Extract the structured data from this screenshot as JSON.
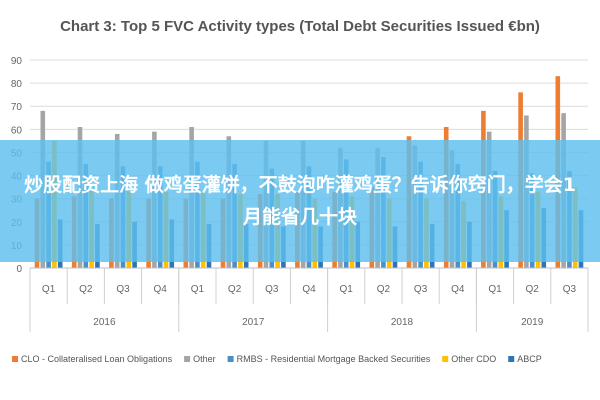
{
  "chart_data": {
    "type": "bar",
    "title": "Chart 3: Top 5 FVC Activity types (Total Debt Securities Issued €bn)",
    "xlabel": "",
    "ylabel": "",
    "ylim": [
      0,
      90
    ],
    "yticks": [
      "0",
      "10",
      "20",
      "30",
      "40",
      "50",
      "60",
      "70",
      "80",
      "90"
    ],
    "grid": true,
    "legend_position": "bottom",
    "categories": [
      "Q1",
      "Q2",
      "Q3",
      "Q4",
      "Q1",
      "Q2",
      "Q3",
      "Q4",
      "Q1",
      "Q2",
      "Q3",
      "Q4",
      "Q1",
      "Q2",
      "Q3"
    ],
    "groups": [
      {
        "label": "2016",
        "span": 4
      },
      {
        "label": "2017",
        "span": 4
      },
      {
        "label": "2018",
        "span": 4
      },
      {
        "label": "2019",
        "span": 3
      }
    ],
    "series": [
      {
        "name": "CLO - Collateralised Loan Obligations",
        "color": "#ED7D31",
        "values": [
          30,
          31,
          30,
          30,
          30,
          30,
          32,
          33,
          33,
          35,
          57,
          61,
          68,
          76,
          83
        ]
      },
      {
        "name": "Other",
        "color": "#A5A5A5",
        "values": [
          68,
          61,
          58,
          59,
          61,
          57,
          55,
          55,
          52,
          52,
          53,
          51,
          59,
          66,
          67
        ]
      },
      {
        "name": "RMBS - Residential Mortgage Backed Securities",
        "color": "#4A90C8",
        "values": [
          46,
          45,
          44,
          44,
          46,
          45,
          43,
          44,
          47,
          48,
          46,
          45,
          42,
          41,
          42
        ]
      },
      {
        "name": "Other CDO",
        "color": "#FFC000",
        "values": [
          55,
          35,
          34,
          33,
          33,
          32,
          32,
          30,
          31,
          30,
          30,
          29,
          31,
          33,
          35
        ]
      },
      {
        "name": "ABCP",
        "color": "#2E75B6",
        "values": [
          21,
          19,
          20,
          21,
          19,
          19,
          18,
          18,
          20,
          18,
          19,
          20,
          25,
          26,
          25
        ]
      }
    ]
  },
  "overlay": {
    "text": "炒股配资上海 做鸡蛋灌饼，不鼓泡咋灌鸡蛋？告诉你窍门，学会1月能省几十块"
  }
}
